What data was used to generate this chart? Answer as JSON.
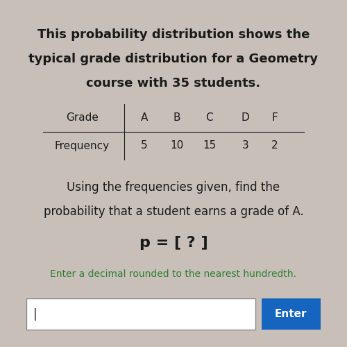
{
  "title_line1": "This probability distribution shows the",
  "title_line2": "typical grade distribution for a Geometry",
  "title_line3": "course with 35 students.",
  "grades": [
    "A",
    "B",
    "C",
    "D",
    "F"
  ],
  "frequencies": [
    5,
    10,
    15,
    3,
    2
  ],
  "row_label1": "Grade",
  "row_label2": "Frequency",
  "question_line1": "Using the frequencies given, find the",
  "question_line2": "probability that a student earns a grade of A.",
  "equation": "p = [ ? ]",
  "hint": "Enter a decimal rounded to the nearest hundredth.",
  "button_text": "Enter",
  "bg_color": "#c8c0b8",
  "text_color": "#1a1a1a",
  "green_color": "#2e7d32",
  "button_color": "#1565c0",
  "button_text_color": "#ffffff",
  "title_fontsize": 13,
  "body_fontsize": 12,
  "table_fontsize": 11,
  "equation_fontsize": 16
}
